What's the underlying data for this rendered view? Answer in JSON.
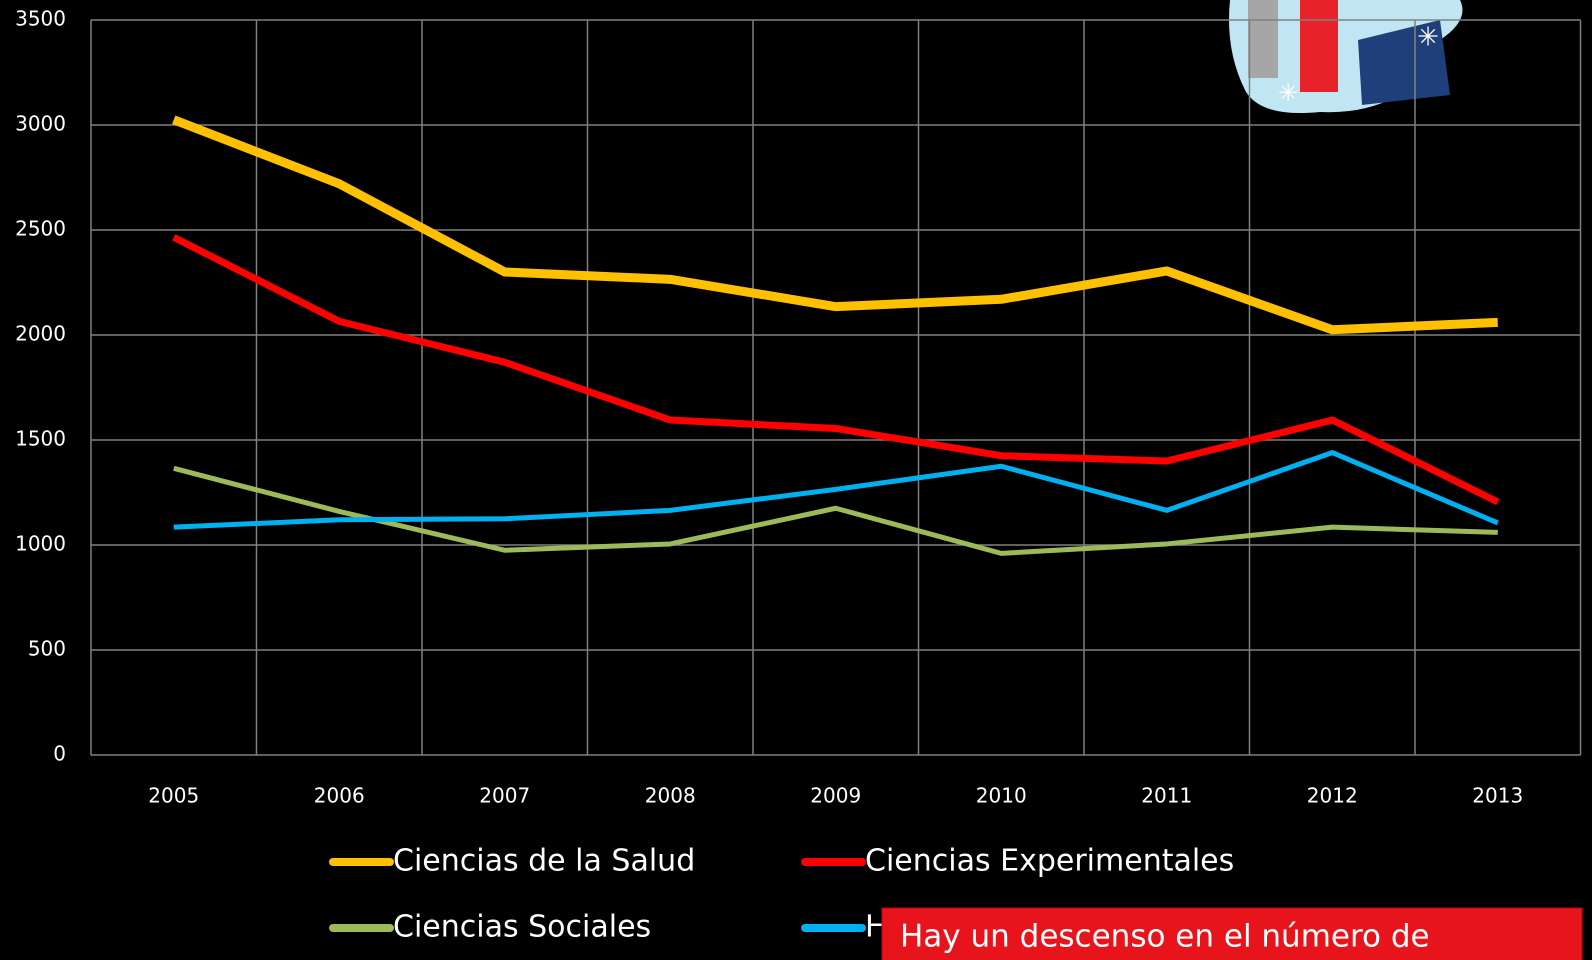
{
  "chart_data": {
    "type": "line",
    "categories": [
      "2005",
      "2006",
      "2007",
      "2008",
      "2009",
      "2010",
      "2011",
      "2012",
      "2013"
    ],
    "series": [
      {
        "name": "Ciencias de la Salud",
        "color": "#ffc000",
        "values": [
          3025,
          2720,
          2300,
          2265,
          2135,
          2170,
          2305,
          2025,
          2060
        ]
      },
      {
        "name": "Ciencias Experimentales",
        "color": "#ff0000",
        "values": [
          2465,
          2065,
          1870,
          1595,
          1555,
          1425,
          1400,
          1595,
          1205
        ]
      },
      {
        "name": "Ciencias Sociales",
        "color": "#9bbb59",
        "values": [
          1365,
          1160,
          975,
          1005,
          1175,
          960,
          1005,
          1085,
          1060
        ]
      },
      {
        "name": "H",
        "color": "#00b0f0",
        "values": [
          1085,
          1120,
          1125,
          1165,
          1265,
          1375,
          1165,
          1440,
          1105
        ]
      }
    ],
    "ylim": [
      0,
      3500
    ],
    "yticks": [
      0,
      500,
      1000,
      1500,
      2000,
      2500,
      3000,
      3500
    ],
    "grid": true,
    "annotation": "Hay un descenso en el número de"
  }
}
